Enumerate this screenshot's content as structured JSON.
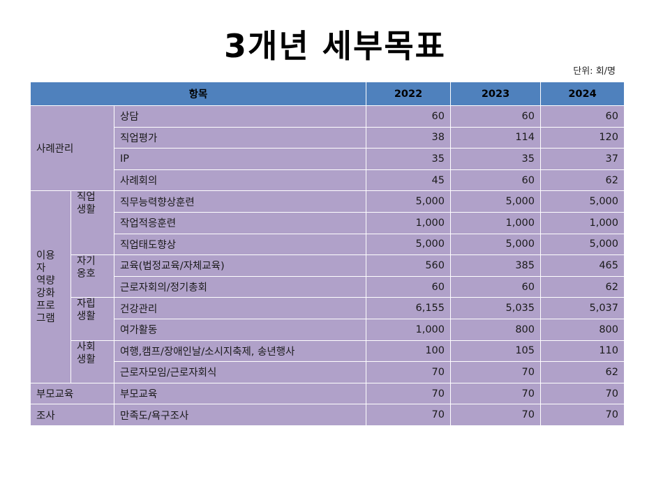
{
  "title": "3개년 세부목표",
  "unit": "단위: 회/명",
  "header": {
    "item": "항목",
    "years": [
      "2022",
      "2023",
      "2024"
    ]
  },
  "groups": {
    "case": "사례관리",
    "program": "이용\n자\n역량\n강화\n프로\n그램",
    "job": "직업\n생활",
    "self": "자기\n옹호",
    "indep": "자립\n생활",
    "social": "사회\n생활",
    "parent": "부모교육",
    "survey": "조사"
  },
  "rows": [
    {
      "label": "상담",
      "v": [
        "60",
        "60",
        "60"
      ]
    },
    {
      "label": "직업평가",
      "v": [
        "38",
        "114",
        "120"
      ]
    },
    {
      "label": "IP",
      "v": [
        "35",
        "35",
        "37"
      ]
    },
    {
      "label": "사례회의",
      "v": [
        "45",
        "60",
        "62"
      ]
    },
    {
      "label": "직무능력향상훈련",
      "v": [
        "5,000",
        "5,000",
        "5,000"
      ]
    },
    {
      "label": "작업적응훈련",
      "v": [
        "1,000",
        "1,000",
        "1,000"
      ]
    },
    {
      "label": "직업태도향상",
      "v": [
        "5,000",
        "5,000",
        "5,000"
      ]
    },
    {
      "label": "교육(법정교육/자체교육)",
      "v": [
        "560",
        "385",
        "465"
      ]
    },
    {
      "label": "근로자회의/정기총회",
      "v": [
        "60",
        "60",
        "62"
      ]
    },
    {
      "label": "건강관리",
      "v": [
        "6,155",
        "5,035",
        "5,037"
      ]
    },
    {
      "label": "여가활동",
      "v": [
        "1,000",
        "800",
        "800"
      ]
    },
    {
      "label": "여행,캠프/장애인날/소시지축제, 송년행사",
      "v": [
        "100",
        "105",
        "110"
      ]
    },
    {
      "label": "근로자모임/근로자회식",
      "v": [
        "70",
        "70",
        "62"
      ]
    },
    {
      "label": "부모교육",
      "v": [
        "70",
        "70",
        "70"
      ]
    },
    {
      "label": "만족도/욕구조사",
      "v": [
        "70",
        "70",
        "70"
      ]
    }
  ]
}
